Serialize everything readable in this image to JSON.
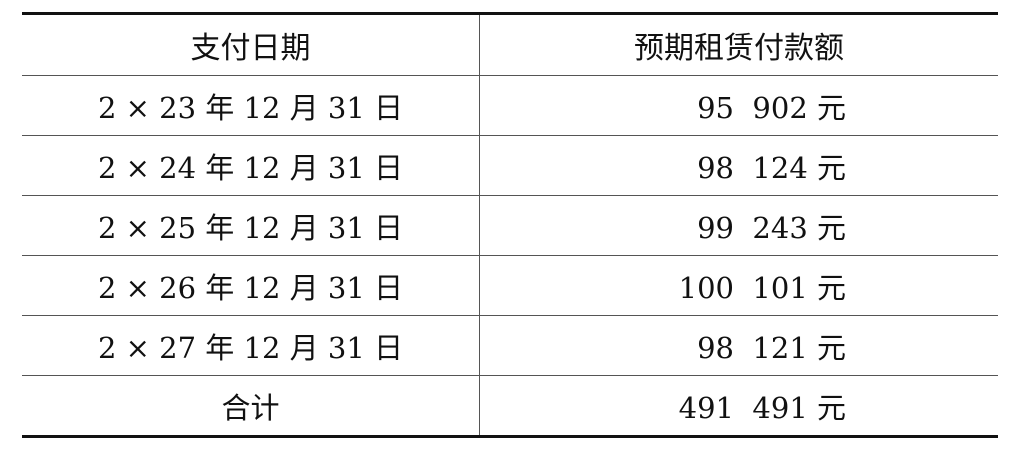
{
  "table": {
    "headers": [
      "支付日期",
      "预期租赁付款额"
    ],
    "rows": [
      [
        "2 × 23 年 12 月 31 日",
        "95  902 元"
      ],
      [
        "2 × 24 年 12 月 31 日",
        "98  124 元"
      ],
      [
        "2 × 25 年 12 月 31 日",
        "99  243 元"
      ],
      [
        "2 × 26 年 12 月 31 日",
        "100  101 元"
      ],
      [
        "2 × 27 年 12 月 31 日",
        "98  121 元"
      ],
      [
        "合计",
        "491  491 元"
      ]
    ]
  }
}
